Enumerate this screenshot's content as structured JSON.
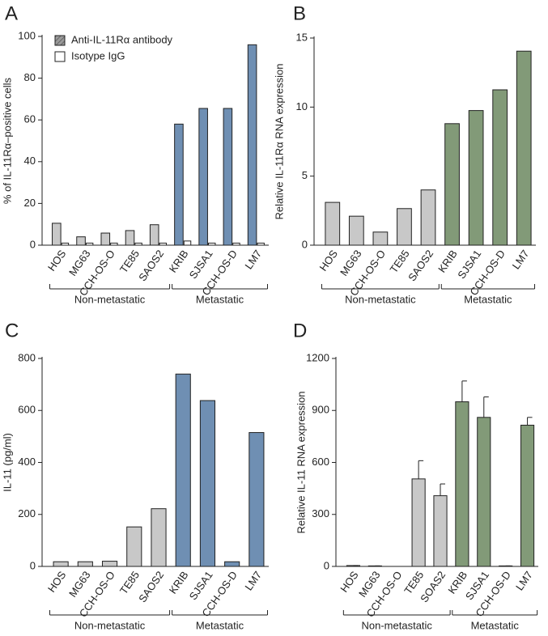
{
  "chart_data": [
    {
      "panel": "A",
      "type": "bar",
      "ylabel": "% of IL-11Rα–positive cells",
      "categories": [
        "HOS",
        "MG63",
        "CCH-OS-O",
        "TE85",
        "SAOS2",
        "KRIB",
        "SJSA1",
        "CCH-OS-D",
        "LM7"
      ],
      "series": [
        {
          "name": "Anti-IL-11Rα antibody",
          "legend_color": "#8c8c8c",
          "hatched": true,
          "colors": [
            "#c8c8c8",
            "#c8c8c8",
            "#c8c8c8",
            "#c8c8c8",
            "#c8c8c8",
            "#6f8fb3",
            "#6f8fb3",
            "#6f8fb3",
            "#6f8fb3"
          ],
          "values": [
            10.5,
            4,
            5.8,
            7,
            9.8,
            58,
            65.5,
            65.5,
            96
          ]
        },
        {
          "name": "Isotype IgG",
          "legend_color": "#ffffff",
          "colors": [
            "#ffffff",
            "#ffffff",
            "#ffffff",
            "#ffffff",
            "#ffffff",
            "#ffffff",
            "#ffffff",
            "#ffffff",
            "#ffffff"
          ],
          "values": [
            1,
            1,
            1,
            1,
            1,
            2,
            1,
            1,
            1
          ]
        }
      ],
      "ylim": [
        0,
        100
      ],
      "yticks": [
        0,
        20,
        40,
        60,
        80,
        100
      ],
      "legend": "upper left",
      "groups": [
        {
          "label": "Non-metastatic",
          "categories": [
            "HOS",
            "MG63",
            "CCH-OS-O",
            "TE85",
            "SAOS2"
          ]
        },
        {
          "label": "Metastatic",
          "categories": [
            "KRIB",
            "SJSA1",
            "CCH-OS-D",
            "LM7"
          ]
        }
      ]
    },
    {
      "panel": "B",
      "type": "bar",
      "ylabel": "Relative  IL-11Rα RNA expression",
      "categories": [
        "HOS",
        "MG63",
        "CCH-OS-O",
        "TE85",
        "SAOS2",
        "KRIB",
        "SJSA1",
        "CCH-OS-D",
        "LM7"
      ],
      "values": [
        3.1,
        2.1,
        0.95,
        2.65,
        4.0,
        8.8,
        9.75,
        11.25,
        14.05
      ],
      "colors": [
        "#c8c8c8",
        "#c8c8c8",
        "#c8c8c8",
        "#c8c8c8",
        "#c8c8c8",
        "#829a78",
        "#829a78",
        "#829a78",
        "#829a78"
      ],
      "ylim": [
        0,
        15
      ],
      "yticks": [
        0,
        5,
        10,
        15
      ],
      "groups": [
        {
          "label": "Non-metastatic",
          "categories": [
            "HOS",
            "MG63",
            "CCH-OS-O",
            "TE85",
            "SAOS2"
          ]
        },
        {
          "label": "Metastatic",
          "categories": [
            "KRIB",
            "SJSA1",
            "CCH-OS-D",
            "LM7"
          ]
        }
      ]
    },
    {
      "panel": "C",
      "type": "bar",
      "ylabel": "IL-11 (pg/ml)",
      "categories": [
        "HOS",
        "MG63",
        "CCH-OS-O",
        "TE85",
        "SAOS2",
        "KRIB",
        "SJSA1",
        "CCH-OS-D",
        "LM7"
      ],
      "values": [
        18,
        18,
        20,
        152,
        222,
        740,
        638,
        18,
        515
      ],
      "colors": [
        "#c8c8c8",
        "#c8c8c8",
        "#c8c8c8",
        "#c8c8c8",
        "#c8c8c8",
        "#6f8fb3",
        "#6f8fb3",
        "#6f8fb3",
        "#6f8fb3"
      ],
      "ylim": [
        0,
        800
      ],
      "yticks": [
        0,
        200,
        400,
        600,
        800
      ],
      "groups": [
        {
          "label": "Non-metastatic",
          "categories": [
            "HOS",
            "MG63",
            "CCH-OS-O",
            "TE85",
            "SAOS2"
          ]
        },
        {
          "label": "Metastatic",
          "categories": [
            "KRIB",
            "SJSA1",
            "CCH-OS-D",
            "LM7"
          ]
        }
      ]
    },
    {
      "panel": "D",
      "type": "bar",
      "ylabel": "Relative IL-11 RNA expression",
      "categories": [
        "HOS",
        "MG63",
        "CCH-OS-O",
        "TE85",
        "SOAS2",
        "KRIB",
        "SJSA1",
        "CCH-OS-D",
        "LM7"
      ],
      "values": [
        5,
        3,
        0,
        505,
        408,
        950,
        860,
        3,
        815
      ],
      "errors": [
        0,
        0,
        0,
        105,
        68,
        120,
        118,
        0,
        45
      ],
      "colors": [
        "#c8c8c8",
        "#c8c8c8",
        "#c8c8c8",
        "#c8c8c8",
        "#c8c8c8",
        "#829a78",
        "#829a78",
        "#829a78",
        "#829a78"
      ],
      "ylim": [
        0,
        1200
      ],
      "yticks": [
        0,
        300,
        600,
        900,
        1200
      ],
      "groups": [
        {
          "label": "Non-metastatic",
          "categories": [
            "HOS",
            "MG63",
            "CCH-OS-O",
            "TE85",
            "SOAS2"
          ]
        },
        {
          "label": "Metastatic",
          "categories": [
            "KRIB",
            "SJSA1",
            "CCH-OS-D",
            "LM7"
          ]
        }
      ]
    }
  ]
}
